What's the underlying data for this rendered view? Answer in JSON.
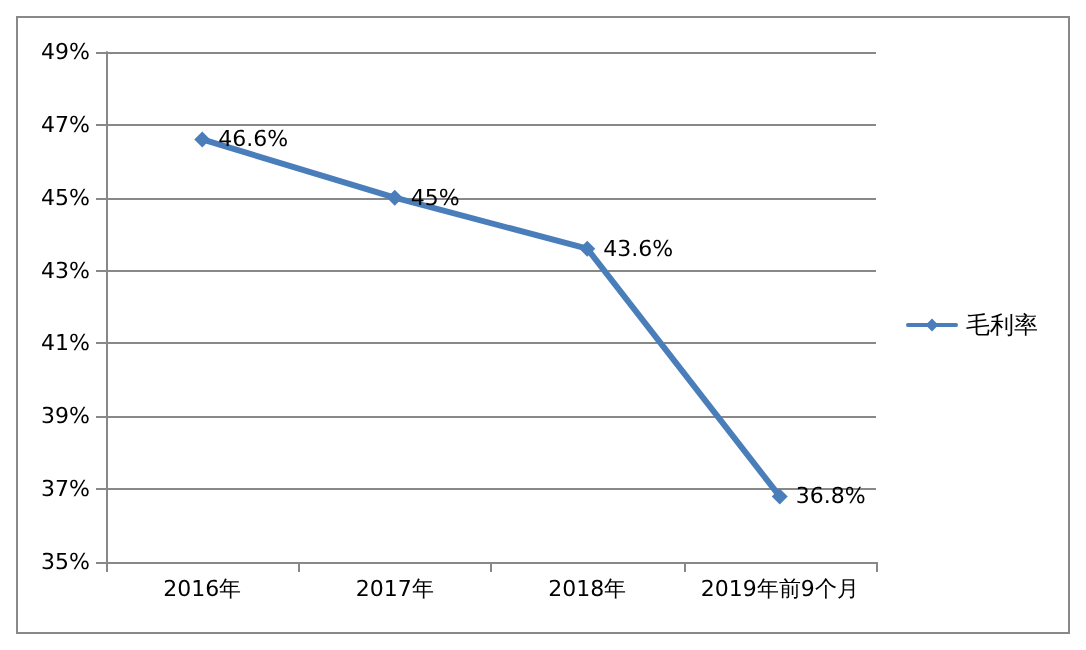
{
  "chart_data": {
    "type": "line",
    "categories": [
      "2016年",
      "2017年",
      "2018年",
      "2019年前9个月"
    ],
    "series": [
      {
        "name": "毛利率",
        "color": "#4a7ebb",
        "values": [
          46.6,
          45,
          43.6,
          36.8
        ],
        "value_labels": [
          "46.6%",
          "45%",
          "43.6%",
          "36.8%"
        ]
      }
    ],
    "ylim": [
      35,
      49
    ],
    "yticks": [
      {
        "value": 35,
        "label": "35%"
      },
      {
        "value": 37,
        "label": "37%"
      },
      {
        "value": 39,
        "label": "39%"
      },
      {
        "value": 41,
        "label": "41%"
      },
      {
        "value": 43,
        "label": "43%"
      },
      {
        "value": 45,
        "label": "45%"
      },
      {
        "value": 47,
        "label": "47%"
      },
      {
        "value": 49,
        "label": "49%"
      }
    ],
    "grid": "y",
    "legend": "right",
    "marker": "diamond",
    "line_style": "solid"
  }
}
